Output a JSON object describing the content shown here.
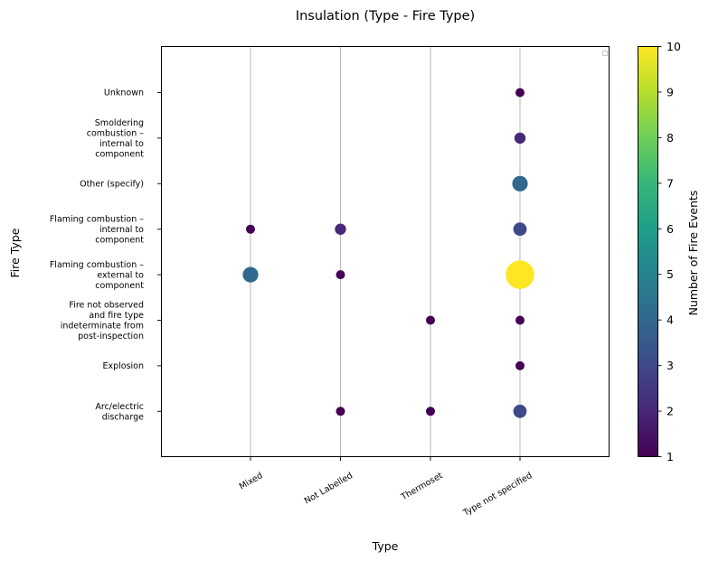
{
  "chart_data": {
    "type": "scatter",
    "title": "Insulation (Type - Fire Type)",
    "xlabel": "Type",
    "ylabel": "Fire Type",
    "x_categories": [
      "Mixed",
      "Not Labelled",
      "Thermoset",
      "Type not specified"
    ],
    "y_categories": [
      "Arc/electric discharge",
      "Explosion",
      "Fire not observed and fire type indeterminate from post-inspection",
      "Flaming combustion – external to component",
      "Flaming combustion – internal to component",
      "Other (specify)",
      "Smoldering combustion – internal to component",
      "Unknown"
    ],
    "y_tick_lines": [
      [
        "Arc/electric",
        "discharge"
      ],
      [
        "Explosion"
      ],
      [
        "Fire not observed",
        "and fire type",
        "indeterminate from",
        "post-inspection"
      ],
      [
        "Flaming combustion –",
        "external to",
        "component"
      ],
      [
        "Flaming combustion –",
        "internal to",
        "component"
      ],
      [
        "Other (specify)"
      ],
      [
        "Smoldering",
        "combustion –",
        "internal to",
        "component"
      ],
      [
        "Unknown"
      ]
    ],
    "points": [
      {
        "x": "Mixed",
        "y": "Flaming combustion – internal to component",
        "value": 1
      },
      {
        "x": "Mixed",
        "y": "Flaming combustion – external to component",
        "value": 4
      },
      {
        "x": "Not Labelled",
        "y": "Flaming combustion – internal to component",
        "value": 2
      },
      {
        "x": "Not Labelled",
        "y": "Flaming combustion – external to component",
        "value": 1
      },
      {
        "x": "Not Labelled",
        "y": "Arc/electric discharge",
        "value": 1
      },
      {
        "x": "Thermoset",
        "y": "Fire not observed and fire type indeterminate from post-inspection",
        "value": 1
      },
      {
        "x": "Thermoset",
        "y": "Arc/electric discharge",
        "value": 1
      },
      {
        "x": "Type not specified",
        "y": "Unknown",
        "value": 1
      },
      {
        "x": "Type not specified",
        "y": "Smoldering combustion – internal to component",
        "value": 2
      },
      {
        "x": "Type not specified",
        "y": "Other (specify)",
        "value": 4
      },
      {
        "x": "Type not specified",
        "y": "Flaming combustion – internal to component",
        "value": 3
      },
      {
        "x": "Type not specified",
        "y": "Flaming combustion – external to component",
        "value": 10
      },
      {
        "x": "Type not specified",
        "y": "Fire not observed and fire type indeterminate from post-inspection",
        "value": 1
      },
      {
        "x": "Type not specified",
        "y": "Explosion",
        "value": 1
      },
      {
        "x": "Type not specified",
        "y": "Arc/electric discharge",
        "value": 3
      }
    ],
    "colorbar": {
      "label": "Number of Fire Events",
      "range": [
        1,
        10
      ],
      "ticks": [
        1,
        2,
        3,
        4,
        5,
        6,
        7,
        8,
        9,
        10
      ],
      "colormap": "viridis"
    },
    "grid": "vertical",
    "legend": "top-right"
  }
}
